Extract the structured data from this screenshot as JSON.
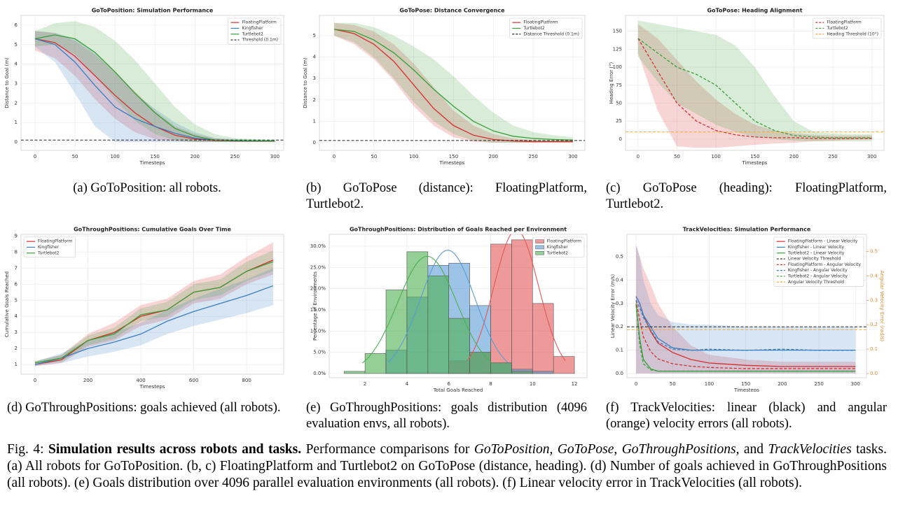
{
  "chart_data": [
    {
      "type": "line",
      "title": "GoToPosition: Simulation Performance",
      "xlabel": "Timesteps",
      "ylabel": "Distance to Goal (m)",
      "xlim": [
        -17.5,
        311
      ],
      "ylim": [
        -0.43,
        6.5
      ],
      "xticks": [
        0,
        50,
        100,
        150,
        200,
        250,
        300
      ],
      "yticks": [
        0,
        1,
        2,
        3,
        4,
        5,
        6
      ],
      "grid": true,
      "legend": "upper right",
      "x": [
        0,
        25,
        50,
        75,
        100,
        125,
        150,
        175,
        200,
        225,
        250,
        275,
        300
      ],
      "series": [
        {
          "name": "FloatingPlatform",
          "color": "#d62f2f",
          "values": [
            5.3,
            5.1,
            4.4,
            3.4,
            2.4,
            1.5,
            0.8,
            0.35,
            0.15,
            0.08,
            0.05,
            0.05,
            0.05
          ],
          "lower": [
            4.7,
            4.3,
            3.4,
            2.2,
            1.2,
            0.5,
            0.15,
            0.05,
            0,
            0,
            0,
            0,
            0
          ],
          "upper": [
            5.7,
            5.6,
            5.2,
            4.5,
            3.6,
            2.6,
            1.6,
            0.8,
            0.4,
            0.2,
            0.1,
            0.1,
            0.1
          ]
        },
        {
          "name": "Kingfisher",
          "color": "#3a7fc1",
          "values": [
            5.3,
            5.0,
            4.1,
            2.9,
            1.8,
            1.2,
            0.8,
            0.45,
            0.2,
            0.1,
            0.08,
            0.06,
            0.06
          ],
          "lower": [
            4.9,
            4.1,
            2.5,
            0.8,
            0,
            0,
            0,
            0,
            0,
            0,
            0,
            0,
            0
          ],
          "upper": [
            5.7,
            5.6,
            5.3,
            4.6,
            3.6,
            2.5,
            1.7,
            1.0,
            0.5,
            0.2,
            0.15,
            0.1,
            0.1
          ]
        },
        {
          "name": "Turtlebot2",
          "color": "#3a9e3a",
          "values": [
            5.3,
            5.5,
            5.3,
            4.6,
            3.6,
            2.5,
            1.5,
            0.7,
            0.3,
            0.1,
            0.06,
            0.05,
            0.05
          ],
          "lower": [
            4.9,
            5.0,
            4.5,
            3.4,
            2.2,
            1.1,
            0.4,
            0.1,
            0,
            0,
            0,
            0,
            0
          ],
          "upper": [
            5.7,
            6.1,
            6.2,
            5.9,
            5.2,
            4.2,
            3.0,
            1.8,
            0.9,
            0.4,
            0.2,
            0.15,
            0.1
          ]
        },
        {
          "name": "Threshold (0.1m)",
          "color": "#222222",
          "linestyle": "dashed",
          "hline": 0.1
        }
      ]
    },
    {
      "type": "line",
      "title": "GoToPose: Distance Convergence",
      "xlabel": "Timesteps",
      "ylabel": "Distance to Goal (m)",
      "xlim": [
        -18.5,
        315
      ],
      "ylim": [
        -0.36,
        5.95
      ],
      "xticks": [
        0,
        50,
        100,
        150,
        200,
        250,
        300
      ],
      "yticks": [
        0,
        1,
        2,
        3,
        4,
        5
      ],
      "grid": true,
      "legend": "upper right",
      "x": [
        0,
        25,
        50,
        75,
        100,
        125,
        150,
        175,
        200,
        225,
        250,
        275,
        300
      ],
      "series": [
        {
          "name": "FloatingPlatform",
          "color": "#d62f2f",
          "values": [
            5.3,
            5.1,
            4.6,
            3.8,
            2.7,
            1.6,
            0.8,
            0.35,
            0.15,
            0.08,
            0.05,
            0.05,
            0.05
          ],
          "lower": [
            5.0,
            4.6,
            3.9,
            2.9,
            1.7,
            0.8,
            0.25,
            0.05,
            0,
            0,
            0,
            0,
            0
          ],
          "upper": [
            5.6,
            5.5,
            5.2,
            4.6,
            3.7,
            2.6,
            1.5,
            0.8,
            0.4,
            0.2,
            0.12,
            0.1,
            0.1
          ]
        },
        {
          "name": "Turtlebot2",
          "color": "#3a9e3a",
          "values": [
            5.3,
            5.2,
            4.8,
            4.2,
            3.4,
            2.5,
            1.7,
            1.0,
            0.55,
            0.3,
            0.2,
            0.15,
            0.12
          ],
          "lower": [
            5.0,
            4.7,
            4.0,
            3.0,
            1.9,
            1.0,
            0.4,
            0.1,
            0,
            0,
            0,
            0,
            0
          ],
          "upper": [
            5.6,
            5.6,
            5.4,
            5.0,
            4.5,
            3.9,
            3.1,
            2.2,
            1.4,
            0.8,
            0.5,
            0.35,
            0.25
          ]
        },
        {
          "name": "Distance Threshold (0.1m)",
          "color": "#222222",
          "linestyle": "dashed",
          "hline": 0.1
        }
      ]
    },
    {
      "type": "line",
      "title": "GoToPose: Heading Alignment",
      "xlabel": "Timesteps",
      "ylabel": "Heading Error (°)",
      "xlim": [
        -16,
        315.5
      ],
      "ylim": [
        -15.6,
        172
      ],
      "xticks": [
        0,
        50,
        100,
        150,
        200,
        250,
        300
      ],
      "yticks": [
        0,
        25,
        50,
        75,
        100,
        125,
        150
      ],
      "grid": true,
      "legend": "upper right",
      "x": [
        0,
        25,
        50,
        75,
        100,
        125,
        150,
        175,
        200,
        225,
        250,
        275,
        300
      ],
      "series": [
        {
          "name": "FloatingPlatform",
          "color": "#d62f2f",
          "linestyle": "dashed",
          "values": [
            140,
            95,
            50,
            25,
            12,
            6,
            3,
            2,
            2,
            1,
            1,
            1,
            1
          ],
          "lower": [
            120,
            40,
            -10,
            -12,
            -12,
            -10,
            -8,
            -6,
            -5,
            -3,
            -2,
            -1,
            0
          ],
          "upper": [
            160,
            140,
            110,
            80,
            55,
            35,
            20,
            12,
            8,
            6,
            5,
            5,
            5
          ]
        },
        {
          "name": "Turtlebot2",
          "color": "#3a9e3a",
          "linestyle": "dashed",
          "values": [
            140,
            120,
            100,
            90,
            75,
            50,
            25,
            12,
            5,
            3,
            2,
            2,
            2
          ],
          "lower": [
            115,
            80,
            50,
            35,
            20,
            10,
            3,
            0,
            -2,
            -3,
            -3,
            -3,
            -3
          ],
          "upper": [
            165,
            160,
            155,
            150,
            145,
            130,
            100,
            60,
            25,
            10,
            8,
            7,
            7
          ]
        },
        {
          "name": "Heading Threshold (10°)",
          "color": "#f2a93b",
          "linestyle": "dashed",
          "hline": 10
        }
      ]
    },
    {
      "type": "line",
      "title": "GoThroughPositions: Cumulative Goals Over Time",
      "xlabel": "Timesteps",
      "ylabel": "Cumulative Goals Reached",
      "xlim": [
        -53,
        940
      ],
      "ylim": [
        0.4,
        9.1
      ],
      "xticks": [
        0,
        200,
        400,
        600,
        800
      ],
      "yticks": [
        1,
        2,
        3,
        4,
        5,
        6,
        7,
        8,
        9
      ],
      "grid": true,
      "legend": "upper left",
      "x": [
        0,
        100,
        200,
        300,
        400,
        500,
        600,
        700,
        800,
        900
      ],
      "series": [
        {
          "name": "FloatingPlatform",
          "color": "#d62f2f",
          "values": [
            1.0,
            1.3,
            2.5,
            3.0,
            4.0,
            4.4,
            5.5,
            5.8,
            6.8,
            7.5
          ],
          "lower": [
            0.9,
            1.1,
            2.1,
            2.5,
            3.4,
            3.8,
            4.8,
            5.1,
            6.0,
            6.6
          ],
          "upper": [
            1.2,
            1.6,
            2.9,
            3.6,
            4.7,
            5.1,
            6.2,
            6.6,
            7.7,
            8.6
          ]
        },
        {
          "name": "Kingfisher",
          "color": "#3a7fc1",
          "values": [
            1.0,
            1.4,
            2.0,
            2.4,
            2.9,
            3.7,
            4.3,
            4.8,
            5.3,
            5.9
          ],
          "lower": [
            0.9,
            1.1,
            1.5,
            1.8,
            2.2,
            2.9,
            3.4,
            3.8,
            4.2,
            4.7
          ],
          "upper": [
            1.2,
            1.7,
            2.5,
            3.0,
            3.6,
            4.4,
            5.1,
            5.7,
            6.3,
            7.0
          ]
        },
        {
          "name": "Turtlebot2",
          "color": "#3a9e3a",
          "values": [
            1.1,
            1.4,
            2.5,
            2.9,
            4.1,
            4.4,
            5.5,
            5.8,
            6.8,
            7.4
          ],
          "lower": [
            1.0,
            1.2,
            2.2,
            2.6,
            3.7,
            4.0,
            5.0,
            5.3,
            6.2,
            6.8
          ],
          "upper": [
            1.2,
            1.6,
            2.8,
            3.3,
            4.5,
            4.9,
            6.0,
            6.3,
            7.4,
            8.1
          ]
        }
      ]
    },
    {
      "type": "histogram",
      "title": "GoThroughPositions: Distribution of Goals Reached per Environment",
      "xlabel": "Total Goals Reached",
      "ylabel": "Percentage of Environments",
      "xlim": [
        0.29,
        12.6
      ],
      "ylim": [
        -1,
        32.8
      ],
      "xticks": [
        2,
        4,
        6,
        8,
        10,
        12
      ],
      "yticks": [
        {
          "value": 0,
          "label": "0.0%"
        },
        {
          "value": 5,
          "label": "5.0%"
        },
        {
          "value": 10,
          "label": "10.0%"
        },
        {
          "value": 15,
          "label": "15.0%"
        },
        {
          "value": 20,
          "label": "20.0%"
        },
        {
          "value": 25,
          "label": "25.0%"
        },
        {
          "value": 30,
          "label": "30.0%"
        }
      ],
      "grid": true,
      "legend": "upper right",
      "bins": [
        1,
        2,
        3,
        4,
        5,
        6,
        7,
        8,
        9,
        10,
        11,
        12
      ],
      "series": [
        {
          "name": "FloatingPlatform",
          "color": "#e35757",
          "values": [
            0,
            0,
            0,
            0,
            0,
            3,
            5,
            30.5,
            31.5,
            16.5,
            4
          ]
        },
        {
          "name": "Kingfisher",
          "color": "#5b9bd5",
          "values": [
            0,
            0,
            5.5,
            18,
            25.5,
            26,
            16,
            2.5,
            1,
            0.5,
            0
          ]
        },
        {
          "name": "Turtlebot2",
          "color": "#4caf50",
          "values": [
            0.5,
            4.7,
            19.7,
            28.7,
            23,
            13,
            5,
            2.5,
            0.5,
            0,
            0
          ]
        }
      ]
    },
    {
      "type": "line",
      "title": "TrackVelocities: Simulation Performance",
      "xlabel": "Timesteps",
      "ylabel": "Linear Velocity Error (m/s)",
      "y2label": "Angular Velocity Error (rad/s)",
      "xlim": [
        -12.5,
        315
      ],
      "ylim": [
        -0.018,
        0.596
      ],
      "y2lim": [
        -0.017,
        0.57
      ],
      "xticks": [
        0,
        50,
        100,
        150,
        200,
        250,
        300
      ],
      "yticks": [
        {
          "value": 0,
          "label": "0.0"
        },
        0.1,
        0.2,
        0.3,
        0.4,
        0.5
      ],
      "y2ticks": [
        {
          "value": 0,
          "label": "0.0"
        },
        0.1,
        0.2,
        0.3,
        0.4,
        0.5
      ],
      "grid": true,
      "legend": "upper right",
      "x": [
        0,
        5,
        10,
        20,
        30,
        50,
        75,
        100,
        150,
        200,
        250,
        300
      ],
      "series": [
        {
          "name": "FloatingPlatform - Linear Velocity",
          "color": "#d62f2f",
          "values": [
            0.33,
            0.3,
            0.25,
            0.18,
            0.13,
            0.09,
            0.06,
            0.045,
            0.035,
            0.03,
            0.03,
            0.03
          ],
          "lower": [
            0,
            0,
            0,
            0,
            0,
            0,
            0,
            0,
            0,
            0,
            0,
            0
          ],
          "upper": [
            0.55,
            0.5,
            0.45,
            0.38,
            0.3,
            0.2,
            0.12,
            0.08,
            0.06,
            0.05,
            0.05,
            0.05
          ]
        },
        {
          "name": "Kingfisher - Linear Velocity",
          "color": "#3a7fc1",
          "values": [
            0.33,
            0.3,
            0.25,
            0.2,
            0.15,
            0.11,
            0.1,
            0.1,
            0.1,
            0.1,
            0.1,
            0.1
          ],
          "lower": [
            0,
            0,
            0,
            0,
            0,
            0,
            0,
            0,
            0,
            0,
            0,
            0
          ],
          "upper": [
            0.55,
            0.5,
            0.4,
            0.3,
            0.25,
            0.22,
            0.21,
            0.21,
            0.2,
            0.2,
            0.2,
            0.2
          ]
        },
        {
          "name": "Turtlebot2 - Linear Velocity",
          "color": "#3a9e3a",
          "values": [
            0.3,
            0.15,
            0.06,
            0.02,
            0.01,
            0.01,
            0.01,
            0.01,
            0.01,
            0.01,
            0.01,
            0.01
          ]
        },
        {
          "name": "Linear Velocity Threshold",
          "color": "#222222",
          "linestyle": "dashed",
          "hline": 0.2
        },
        {
          "name": "FloatingPlatform - Angular Velocity",
          "color": "#d62f2f",
          "linestyle": "dashed",
          "axis": "y2",
          "values": [
            0.3,
            0.22,
            0.15,
            0.09,
            0.06,
            0.04,
            0.03,
            0.025,
            0.02,
            0.02,
            0.02,
            0.02
          ]
        },
        {
          "name": "Kingfisher - Angular Velocity",
          "color": "#3a7fc1",
          "linestyle": "dashed",
          "axis": "y2",
          "values": [
            0.3,
            0.27,
            0.23,
            0.18,
            0.13,
            0.1,
            0.095,
            0.1,
            0.095,
            0.1,
            0.095,
            0.095
          ]
        },
        {
          "name": "Turtlebot2 - Angular Velocity",
          "color": "#3a9e3a",
          "linestyle": "dashed",
          "axis": "y2",
          "values": [
            0.28,
            0.12,
            0.04,
            0.015,
            0.01,
            0.01,
            0.01,
            0.01,
            0.01,
            0.01,
            0.01,
            0.01
          ]
        },
        {
          "name": "Angular Velocity Threshold",
          "color": "#f2a93b",
          "linestyle": "dashed",
          "axis": "y2",
          "hline": 0.18
        }
      ]
    }
  ],
  "subcaptions": [
    "(a) GoToPosition: all robots.",
    "(b) GoToPose (distance): FloatingPlatform, Turtlebot2.",
    "(c) GoToPose (heading): FloatingPlatform, Turtlebot2.",
    "(d) GoThroughPositions: goals achieved (all robots).",
    "(e) GoThroughPositions: goals distribution (4096 evaluation envs, all robots).",
    "(f) TrackVelocities: linear (black) and angular (orange) velocity errors (all robots)."
  ],
  "figure_caption": {
    "parts": [
      "Fig. 4: ",
      "Simulation results across robots and tasks.",
      " Performance comparisons for ",
      "GoToPosition",
      ", ",
      "GoToPose",
      ", ",
      "GoThroughPositions",
      ", and ",
      "TrackVelocities",
      " tasks. (a) All robots for GoToPosition. (b, c) FloatingPlatform and Turtlebot2 on GoToPose (distance, heading). (d) Number of goals achieved in GoThroughPositions (all robots). (e) Goals distribution over 4096 parallel evaluation environments (all robots). (f) Linear velocity error in TrackVelocities (all robots)."
    ]
  }
}
